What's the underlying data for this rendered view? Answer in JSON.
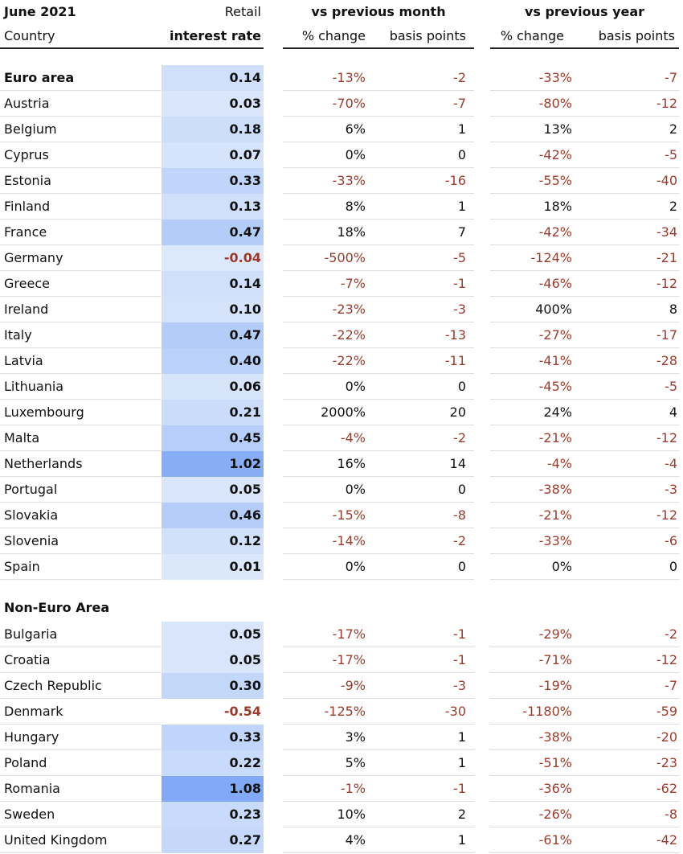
{
  "header": {
    "title": "June 2021",
    "country": "Country",
    "rate_top": "Retail",
    "rate_bottom": "interest rate",
    "month_group": "vs previous month",
    "year_group": "vs previous year",
    "month_pct": "% change",
    "month_bp": "basis points",
    "year_pct": "% change",
    "year_bp": "basis points"
  },
  "euro_area": {
    "rows": [
      [
        "Euro area",
        "0.14",
        "-13%",
        "-2",
        "-33%",
        "-7"
      ],
      [
        "Austria",
        "0.03",
        "-70%",
        "-7",
        "-80%",
        "-12"
      ],
      [
        "Belgium",
        "0.18",
        "6%",
        "1",
        "13%",
        "2"
      ],
      [
        "Cyprus",
        "0.07",
        "0%",
        "0",
        "-42%",
        "-5"
      ],
      [
        "Estonia",
        "0.33",
        "-33%",
        "-16",
        "-55%",
        "-40"
      ],
      [
        "Finland",
        "0.13",
        "8%",
        "1",
        "18%",
        "2"
      ],
      [
        "France",
        "0.47",
        "18%",
        "7",
        "-42%",
        "-34"
      ],
      [
        "Germany",
        "-0.04",
        "-500%",
        "-5",
        "-124%",
        "-21"
      ],
      [
        "Greece",
        "0.14",
        "-7%",
        "-1",
        "-46%",
        "-12"
      ],
      [
        "Ireland",
        "0.10",
        "-23%",
        "-3",
        "400%",
        "8"
      ],
      [
        "Italy",
        "0.47",
        "-22%",
        "-13",
        "-27%",
        "-17"
      ],
      [
        "Latvia",
        "0.40",
        "-22%",
        "-11",
        "-41%",
        "-28"
      ],
      [
        "Lithuania",
        "0.06",
        "0%",
        "0",
        "-45%",
        "-5"
      ],
      [
        "Luxembourg",
        "0.21",
        "2000%",
        "20",
        "24%",
        "4"
      ],
      [
        "Malta",
        "0.45",
        "-4%",
        "-2",
        "-21%",
        "-12"
      ],
      [
        "Netherlands",
        "1.02",
        "16%",
        "14",
        "-4%",
        "-4"
      ],
      [
        "Portugal",
        "0.05",
        "0%",
        "0",
        "-38%",
        "-3"
      ],
      [
        "Slovakia",
        "0.46",
        "-15%",
        "-8",
        "-21%",
        "-12"
      ],
      [
        "Slovenia",
        "0.12",
        "-14%",
        "-2",
        "-33%",
        "-6"
      ],
      [
        "Spain",
        "0.01",
        "0%",
        "0",
        "0%",
        "0"
      ]
    ]
  },
  "non_euro": {
    "title": "Non-Euro Area",
    "rows": [
      [
        "Bulgaria",
        "0.05",
        "-17%",
        "-1",
        "-29%",
        "-2"
      ],
      [
        "Croatia",
        "0.05",
        "-17%",
        "-1",
        "-71%",
        "-12"
      ],
      [
        "Czech Republic",
        "0.30",
        "-9%",
        "-3",
        "-19%",
        "-7"
      ],
      [
        "Denmark",
        "-0.54",
        "-125%",
        "-30",
        "-1180%",
        "-59"
      ],
      [
        "Hungary",
        "0.33",
        "3%",
        "1",
        "-38%",
        "-20"
      ],
      [
        "Poland",
        "0.22",
        "5%",
        "1",
        "-51%",
        "-23"
      ],
      [
        "Romania",
        "1.08",
        "-1%",
        "-1",
        "-36%",
        "-62"
      ],
      [
        "Sweden",
        "0.23",
        "10%",
        "2",
        "-26%",
        "-8"
      ],
      [
        "United Kingdom",
        "0.27",
        "4%",
        "1",
        "-61%",
        "-42"
      ]
    ]
  }
}
